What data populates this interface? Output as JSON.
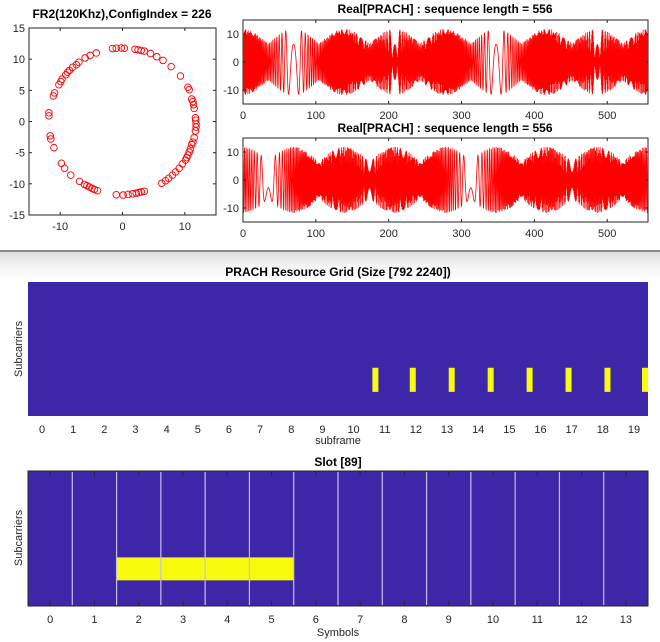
{
  "colors": {
    "marker": "#ff0000",
    "line": "#ff0000",
    "grid_background": "#3d26a8",
    "grid_active": "#f9fb0e",
    "symbol_divider": "#c8c0e8",
    "axis": "#262626"
  },
  "chart_data": [
    {
      "id": "constellation",
      "type": "scatter",
      "title": "FR2(120Khz),ConfigIndex = 226",
      "xlabel": "",
      "ylabel": "",
      "xlim": [
        -15,
        15
      ],
      "ylim": [
        -15,
        15
      ],
      "xticks": [
        -10,
        0,
        10
      ],
      "yticks": [
        15,
        10,
        5,
        0,
        -5,
        -10,
        -15
      ],
      "xtick_labels": [
        "-10",
        "0",
        "10"
      ],
      "ytick_labels": [
        "15",
        "10",
        "5",
        "0",
        "-5",
        "-10",
        "-15"
      ],
      "marker": "circle-open",
      "points": [
        [
          -1.6,
          11.7
        ],
        [
          -1.0,
          11.75
        ],
        [
          -0.2,
          11.8
        ],
        [
          0.3,
          11.75
        ],
        [
          2.0,
          11.6
        ],
        [
          2.5,
          11.5
        ],
        [
          3.0,
          11.4
        ],
        [
          3.5,
          11.3
        ],
        [
          4.5,
          10.9
        ],
        [
          5.5,
          10.4
        ],
        [
          6.5,
          9.8
        ],
        [
          7.8,
          8.8
        ],
        [
          9.3,
          7.3
        ],
        [
          10.5,
          5.5
        ],
        [
          10.7,
          5.1
        ],
        [
          11.1,
          3.6
        ],
        [
          11.3,
          3.2
        ],
        [
          11.4,
          2.7
        ],
        [
          11.5,
          2.1
        ],
        [
          11.7,
          0.6
        ],
        [
          11.75,
          0.2
        ],
        [
          11.8,
          -0.4
        ],
        [
          11.8,
          -0.9
        ],
        [
          11.7,
          -1.5
        ],
        [
          11.5,
          -2.6
        ],
        [
          11.3,
          -3.3
        ],
        [
          11.1,
          -3.7
        ],
        [
          10.9,
          -4.4
        ],
        [
          10.7,
          -4.9
        ],
        [
          10.5,
          -5.4
        ],
        [
          10.3,
          -5.8
        ],
        [
          10.1,
          -6.2
        ],
        [
          9.6,
          -6.8
        ],
        [
          9.1,
          -7.5
        ],
        [
          8.5,
          -8.1
        ],
        [
          8.0,
          -8.6
        ],
        [
          7.4,
          -9.1
        ],
        [
          6.9,
          -9.5
        ],
        [
          6.3,
          -9.9
        ],
        [
          3.5,
          -11.2
        ],
        [
          3.0,
          -11.3
        ],
        [
          2.6,
          -11.4
        ],
        [
          2.2,
          -11.5
        ],
        [
          1.6,
          -11.6
        ],
        [
          0.9,
          -11.7
        ],
        [
          0.1,
          -11.8
        ],
        [
          -1.0,
          -11.75
        ],
        [
          -4.0,
          -11.1
        ],
        [
          -4.5,
          -10.9
        ],
        [
          -4.9,
          -10.7
        ],
        [
          -5.3,
          -10.5
        ],
        [
          -5.7,
          -10.3
        ],
        [
          -6.1,
          -10.1
        ],
        [
          -6.9,
          -9.6
        ],
        [
          -8.3,
          -8.6
        ],
        [
          -9.3,
          -7.5
        ],
        [
          -9.8,
          -6.7
        ],
        [
          -11.0,
          -4.2
        ],
        [
          -11.5,
          -2.8
        ],
        [
          -11.6,
          -2.3
        ],
        [
          -11.8,
          0.9
        ],
        [
          -11.8,
          1.4
        ],
        [
          -11.1,
          4.1
        ],
        [
          -10.9,
          4.6
        ],
        [
          -10.2,
          5.9
        ],
        [
          -9.9,
          6.4
        ],
        [
          -9.7,
          6.8
        ],
        [
          -9.1,
          7.5
        ],
        [
          -8.8,
          7.9
        ],
        [
          -8.5,
          8.2
        ],
        [
          -8.0,
          8.7
        ],
        [
          -7.4,
          9.1
        ],
        [
          -7.0,
          9.5
        ],
        [
          -6.0,
          10.2
        ],
        [
          -5.2,
          10.6
        ],
        [
          -4.2,
          11.0
        ]
      ]
    },
    {
      "id": "real-prach-1",
      "type": "line",
      "title": "Real[PRACH] : sequence length = 556",
      "xlim": [
        0,
        556
      ],
      "ylim": [
        -15,
        15
      ],
      "xticks": [
        0,
        100,
        200,
        300,
        400,
        500
      ],
      "xtick_labels": [
        "0",
        "100",
        "200",
        "300",
        "400",
        "500"
      ],
      "yticks": [
        10,
        0,
        -10
      ],
      "ytick_labels": [
        "10",
        "0",
        "-10"
      ],
      "sequence_length": 556,
      "amplitude": 11.8,
      "period": 139,
      "phase_offset": 0
    },
    {
      "id": "real-prach-2",
      "type": "line",
      "title": "Real[PRACH] : sequence length = 556",
      "xlim": [
        0,
        556
      ],
      "ylim": [
        -15,
        15
      ],
      "xticks": [
        0,
        100,
        200,
        300,
        400,
        500
      ],
      "xtick_labels": [
        "0",
        "100",
        "200",
        "300",
        "400",
        "500"
      ],
      "yticks": [
        10,
        0,
        -10
      ],
      "ytick_labels": [
        "10",
        "0",
        "-10"
      ],
      "sequence_length": 556,
      "amplitude": 11.8,
      "period": 139,
      "phase_offset": 0.5
    },
    {
      "id": "resource-grid",
      "type": "heatmap",
      "title": "PRACH Resource Grid (Size [792 2240])",
      "xlabel": "subframe",
      "ylabel": "Subcarriers",
      "xlim": [
        -0.45,
        19.45
      ],
      "xticks": [
        0,
        1,
        2,
        3,
        4,
        5,
        6,
        7,
        8,
        9,
        10,
        11,
        12,
        13,
        14,
        15,
        16,
        17,
        18,
        19
      ],
      "xtick_labels": [
        "0",
        "1",
        "2",
        "3",
        "4",
        "5",
        "6",
        "7",
        "8",
        "9",
        "10",
        "11",
        "12",
        "13",
        "14",
        "15",
        "16",
        "17",
        "18",
        "19"
      ],
      "grid_size": [
        792,
        2240
      ],
      "active_regions": [
        {
          "subframe": 10.7,
          "subcarrier_range": [
            0.64,
            0.82
          ]
        },
        {
          "subframe": 11.9,
          "subcarrier_range": [
            0.64,
            0.82
          ]
        },
        {
          "subframe": 13.15,
          "subcarrier_range": [
            0.64,
            0.82
          ]
        },
        {
          "subframe": 14.4,
          "subcarrier_range": [
            0.64,
            0.82
          ]
        },
        {
          "subframe": 15.65,
          "subcarrier_range": [
            0.64,
            0.82
          ]
        },
        {
          "subframe": 16.9,
          "subcarrier_range": [
            0.64,
            0.82
          ]
        },
        {
          "subframe": 18.15,
          "subcarrier_range": [
            0.64,
            0.82
          ]
        },
        {
          "subframe": 19.4,
          "subcarrier_range": [
            0.64,
            0.82
          ]
        }
      ]
    },
    {
      "id": "slot",
      "type": "heatmap",
      "title": "Slot [89]",
      "xlabel": "Symbols",
      "ylabel": "Subcarriers",
      "xlim": [
        -0.5,
        13.5
      ],
      "xticks": [
        0,
        1,
        2,
        3,
        4,
        5,
        6,
        7,
        8,
        9,
        10,
        11,
        12,
        13
      ],
      "xtick_labels": [
        "0",
        "1",
        "2",
        "3",
        "4",
        "5",
        "6",
        "7",
        "8",
        "9",
        "10",
        "11",
        "12",
        "13"
      ],
      "symbol_boundaries": [
        0.5,
        1.5,
        2.5,
        3.5,
        4.5,
        5.5,
        6.5,
        7.5,
        8.5,
        9.5,
        10.5,
        11.5,
        12.5
      ],
      "active_region": {
        "symbol_range": [
          1.5,
          5.5
        ],
        "subcarrier_range": [
          0.64,
          0.81
        ]
      }
    }
  ]
}
